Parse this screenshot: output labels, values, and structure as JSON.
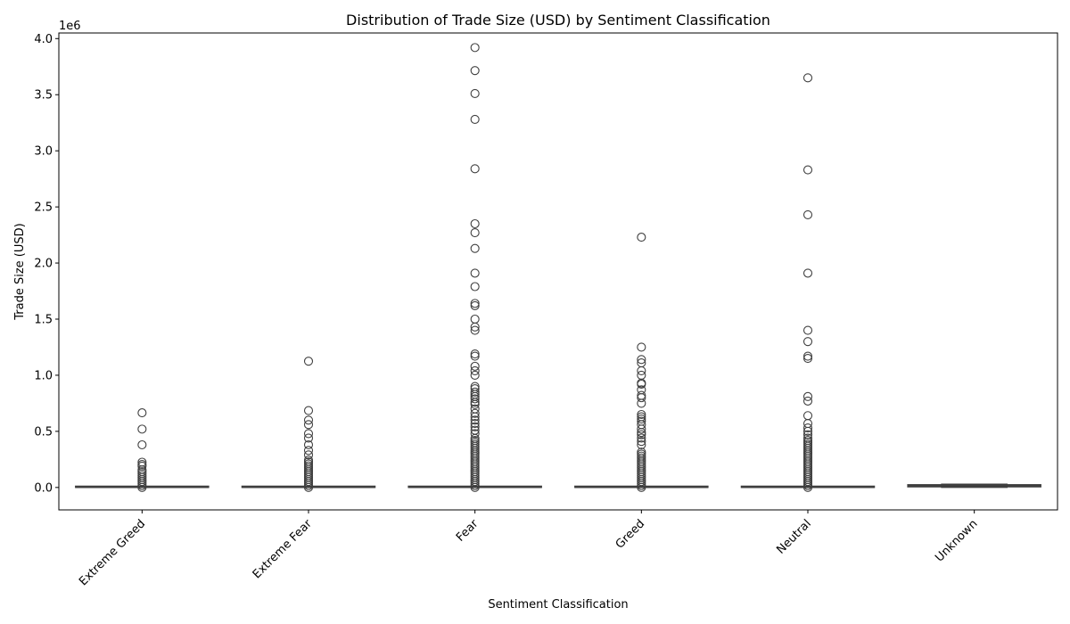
{
  "chart_data": {
    "type": "box",
    "title": "Distribution of Trade Size (USD) by Sentiment Classification",
    "xlabel": "Sentiment Classification",
    "ylabel": "Trade Size (USD)",
    "y_offset_label": "1e6",
    "y_tick_scale": 1000000,
    "ylim": [
      -200000,
      4050000
    ],
    "yticks": [
      0,
      500000,
      1000000,
      1500000,
      2000000,
      2500000,
      3000000,
      3500000,
      4000000
    ],
    "ytick_labels": [
      "0.0",
      "0.5",
      "1.0",
      "1.5",
      "2.0",
      "2.5",
      "3.0",
      "3.5",
      "4.0"
    ],
    "grid": false,
    "categories": [
      "Extreme Greed",
      "Extreme Fear",
      "Fear",
      "Greed",
      "Neutral",
      "Unknown"
    ],
    "boxes": [
      {
        "category": "Extreme Greed",
        "q1": 0,
        "median": 500,
        "q3": 3000,
        "whisker_low": 0,
        "whisker_high": 6000,
        "outlier_band": [
          0,
          170000
        ],
        "outliers": [
          665000,
          520000,
          380000,
          225000,
          205000,
          190000
        ]
      },
      {
        "category": "Extreme Fear",
        "q1": 0,
        "median": 500,
        "q3": 3000,
        "whisker_low": 0,
        "whisker_high": 6000,
        "outlier_band": [
          0,
          260000
        ],
        "outliers": [
          1125000,
          685000,
          600000,
          560000,
          480000,
          440000,
          380000,
          330000,
          290000
        ]
      },
      {
        "category": "Fear",
        "q1": 0,
        "median": 500,
        "q3": 3000,
        "whisker_low": 0,
        "whisker_high": 6000,
        "outlier_band": [
          0,
          450000
        ],
        "outliers": [
          3920000,
          3715000,
          3510000,
          3280000,
          2840000,
          2350000,
          2270000,
          2130000,
          1910000,
          1790000,
          1640000,
          1620000,
          1500000,
          1430000,
          1400000,
          1190000,
          1170000,
          1080000,
          1040000,
          1000000,
          900000,
          880000,
          850000,
          830000,
          810000,
          790000,
          760000,
          740000,
          700000,
          660000,
          630000,
          600000,
          570000,
          540000,
          510000,
          480000
        ]
      },
      {
        "category": "Greed",
        "q1": 0,
        "median": 500,
        "q3": 3000,
        "whisker_low": 0,
        "whisker_high": 6000,
        "outlier_band": [
          0,
          330000
        ],
        "outliers": [
          2230000,
          1250000,
          1140000,
          1110000,
          1040000,
          1000000,
          930000,
          920000,
          870000,
          820000,
          800000,
          750000,
          650000,
          630000,
          610000,
          590000,
          560000,
          520000,
          490000,
          470000,
          440000,
          410000,
          380000
        ]
      },
      {
        "category": "Neutral",
        "q1": 0,
        "median": 500,
        "q3": 3000,
        "whisker_low": 0,
        "whisker_high": 6000,
        "outlier_band": [
          0,
          420000
        ],
        "outliers": [
          3650000,
          2830000,
          2430000,
          1910000,
          1400000,
          1300000,
          1170000,
          1150000,
          810000,
          770000,
          640000,
          570000,
          530000,
          500000,
          470000,
          440000
        ]
      },
      {
        "category": "Unknown",
        "q1": 5000,
        "median": 15000,
        "q3": 25000,
        "whisker_low": 0,
        "whisker_high": 30000,
        "outlier_band": null,
        "outliers": []
      }
    ],
    "colors": {
      "box_fill": "#3a3a3a",
      "box_edge": "#3f3f3f",
      "marker_edge": "#3f3f3f",
      "axes": "#000000"
    }
  }
}
